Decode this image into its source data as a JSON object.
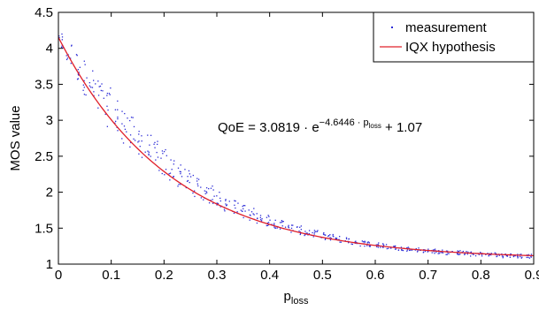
{
  "chart_data": {
    "type": "scatter",
    "xlabel": "p",
    "xlabel_sub": "loss",
    "ylabel": "MOS value",
    "xlim": [
      0,
      0.9
    ],
    "ylim": [
      1,
      4.5
    ],
    "xticks": [
      0,
      0.1,
      0.2,
      0.3,
      0.4,
      0.5,
      0.6,
      0.7,
      0.8,
      0.9
    ],
    "xtick_labels": [
      "0",
      "0.1",
      "0.2",
      "0.3",
      "0.4",
      "0.5",
      "0.6",
      "0.7",
      "0.8",
      "0.9"
    ],
    "yticks": [
      1,
      1.5,
      2,
      2.5,
      3,
      3.5,
      4,
      4.5
    ],
    "ytick_labels": [
      "1",
      "1.5",
      "2",
      "2.5",
      "3",
      "3.5",
      "4",
      "4.5"
    ],
    "grid": false,
    "legend": {
      "placement": "top-right",
      "entries": [
        {
          "label": "measurement",
          "marker": "dot",
          "color": "#2b2bd6"
        },
        {
          "label": "IQX hypothesis",
          "marker": "line",
          "color": "#e0202a"
        }
      ]
    },
    "annotation": {
      "prefix": "QoE = 3.0819 · e",
      "exponent": "−4.6446 · p",
      "exponent_sub": "loss",
      "suffix": " + 1.07"
    },
    "fit": {
      "a": 3.0819,
      "b": -4.6446,
      "c": 1.07
    },
    "series": [
      {
        "name": "measurement",
        "type": "scatter",
        "color": "#2b2bd6",
        "x": [
          0.005,
          0.02,
          0.035,
          0.05,
          0.065,
          0.08,
          0.095,
          0.11,
          0.125,
          0.14,
          0.155,
          0.17,
          0.185,
          0.2,
          0.215,
          0.23,
          0.245,
          0.26,
          0.275,
          0.29,
          0.305,
          0.32,
          0.335,
          0.35,
          0.365,
          0.38,
          0.395,
          0.41,
          0.425,
          0.44,
          0.455,
          0.47,
          0.485,
          0.5,
          0.515,
          0.53,
          0.545,
          0.56,
          0.575,
          0.59,
          0.605,
          0.62,
          0.635,
          0.65,
          0.665,
          0.68,
          0.695,
          0.71,
          0.725,
          0.74,
          0.755,
          0.77,
          0.785,
          0.8,
          0.815,
          0.83,
          0.845,
          0.86,
          0.875,
          0.89
        ],
        "y_mean": [
          4.08,
          3.91,
          3.75,
          3.6,
          3.45,
          3.31,
          3.18,
          3.05,
          2.93,
          2.81,
          2.7,
          2.6,
          2.5,
          2.41,
          2.32,
          2.24,
          2.16,
          2.09,
          2.02,
          1.96,
          1.9,
          1.84,
          1.79,
          1.74,
          1.69,
          1.65,
          1.61,
          1.57,
          1.54,
          1.5,
          1.47,
          1.44,
          1.42,
          1.39,
          1.37,
          1.35,
          1.33,
          1.31,
          1.29,
          1.28,
          1.26,
          1.25,
          1.23,
          1.22,
          1.21,
          1.2,
          1.19,
          1.18,
          1.17,
          1.16,
          1.16,
          1.15,
          1.14,
          1.14,
          1.13,
          1.13,
          1.12,
          1.12,
          1.11,
          1.11
        ],
        "y_spread": [
          0.12,
          0.18,
          0.22,
          0.25,
          0.26,
          0.27,
          0.27,
          0.26,
          0.25,
          0.24,
          0.23,
          0.22,
          0.21,
          0.2,
          0.18,
          0.17,
          0.16,
          0.15,
          0.14,
          0.13,
          0.12,
          0.11,
          0.1,
          0.1,
          0.09,
          0.08,
          0.08,
          0.07,
          0.07,
          0.06,
          0.06,
          0.06,
          0.05,
          0.05,
          0.05,
          0.05,
          0.04,
          0.04,
          0.04,
          0.04,
          0.04,
          0.04,
          0.03,
          0.03,
          0.03,
          0.03,
          0.03,
          0.03,
          0.03,
          0.03,
          0.03,
          0.03,
          0.03,
          0.03,
          0.03,
          0.03,
          0.03,
          0.03,
          0.03,
          0.03
        ]
      },
      {
        "name": "IQX hypothesis",
        "type": "line",
        "color": "#e0202a"
      }
    ]
  }
}
